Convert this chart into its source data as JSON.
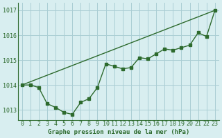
{
  "title": "Graphe pression niveau de la mer (hPa)",
  "bg_color": "#d8eef0",
  "line_color": "#2d6a2d",
  "grid_color": "#aacdd4",
  "xlim": [
    -0.5,
    23.5
  ],
  "ylim": [
    1012.6,
    1017.3
  ],
  "yticks": [
    1013,
    1014,
    1015,
    1016,
    1017
  ],
  "xticks": [
    0,
    1,
    2,
    3,
    4,
    5,
    6,
    7,
    8,
    9,
    10,
    11,
    12,
    13,
    14,
    15,
    16,
    17,
    18,
    19,
    20,
    21,
    22,
    23
  ],
  "series1_x": [
    0,
    1,
    2,
    3,
    4,
    5,
    6,
    7,
    8,
    9,
    10,
    11,
    12,
    13,
    14,
    15,
    16,
    17,
    18,
    19,
    20,
    21,
    22,
    23
  ],
  "series1_y": [
    1014.0,
    1014.0,
    1013.9,
    1013.25,
    1013.1,
    1012.9,
    1012.82,
    1013.3,
    1013.45,
    1013.9,
    1014.85,
    1014.75,
    1014.65,
    1014.7,
    1015.1,
    1015.05,
    1015.25,
    1015.45,
    1015.4,
    1015.5,
    1015.6,
    1016.1,
    1015.95,
    1017.0
  ],
  "series2_x": [
    0,
    23
  ],
  "series2_y": [
    1014.0,
    1017.0
  ],
  "marker_size": 2.5,
  "linewidth": 1.0,
  "title_fontsize": 6.5,
  "tick_fontsize": 6
}
